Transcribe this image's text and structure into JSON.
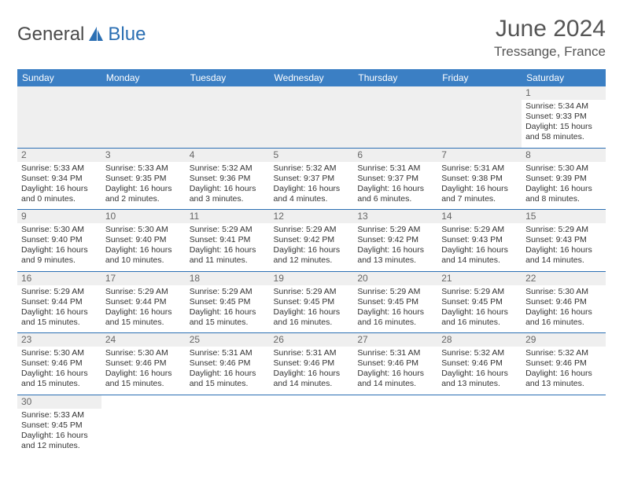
{
  "brand": {
    "part1": "General",
    "part2": "Blue"
  },
  "title": "June 2024",
  "location": "Tressange, France",
  "colors": {
    "header_bg": "#3b7fc4",
    "header_text": "#ffffff",
    "row_divider": "#2b6fb3",
    "daynum_bg": "#efefef",
    "logo_blue": "#2b6fb3",
    "logo_gray": "#4a4a4a"
  },
  "weekdays": [
    "Sunday",
    "Monday",
    "Tuesday",
    "Wednesday",
    "Thursday",
    "Friday",
    "Saturday"
  ],
  "weeks": [
    [
      null,
      null,
      null,
      null,
      null,
      null,
      {
        "d": "1",
        "sr": "Sunrise: 5:34 AM",
        "ss": "Sunset: 9:33 PM",
        "dl1": "Daylight: 15 hours",
        "dl2": "and 58 minutes."
      }
    ],
    [
      {
        "d": "2",
        "sr": "Sunrise: 5:33 AM",
        "ss": "Sunset: 9:34 PM",
        "dl1": "Daylight: 16 hours",
        "dl2": "and 0 minutes."
      },
      {
        "d": "3",
        "sr": "Sunrise: 5:33 AM",
        "ss": "Sunset: 9:35 PM",
        "dl1": "Daylight: 16 hours",
        "dl2": "and 2 minutes."
      },
      {
        "d": "4",
        "sr": "Sunrise: 5:32 AM",
        "ss": "Sunset: 9:36 PM",
        "dl1": "Daylight: 16 hours",
        "dl2": "and 3 minutes."
      },
      {
        "d": "5",
        "sr": "Sunrise: 5:32 AM",
        "ss": "Sunset: 9:37 PM",
        "dl1": "Daylight: 16 hours",
        "dl2": "and 4 minutes."
      },
      {
        "d": "6",
        "sr": "Sunrise: 5:31 AM",
        "ss": "Sunset: 9:37 PM",
        "dl1": "Daylight: 16 hours",
        "dl2": "and 6 minutes."
      },
      {
        "d": "7",
        "sr": "Sunrise: 5:31 AM",
        "ss": "Sunset: 9:38 PM",
        "dl1": "Daylight: 16 hours",
        "dl2": "and 7 minutes."
      },
      {
        "d": "8",
        "sr": "Sunrise: 5:30 AM",
        "ss": "Sunset: 9:39 PM",
        "dl1": "Daylight: 16 hours",
        "dl2": "and 8 minutes."
      }
    ],
    [
      {
        "d": "9",
        "sr": "Sunrise: 5:30 AM",
        "ss": "Sunset: 9:40 PM",
        "dl1": "Daylight: 16 hours",
        "dl2": "and 9 minutes."
      },
      {
        "d": "10",
        "sr": "Sunrise: 5:30 AM",
        "ss": "Sunset: 9:40 PM",
        "dl1": "Daylight: 16 hours",
        "dl2": "and 10 minutes."
      },
      {
        "d": "11",
        "sr": "Sunrise: 5:29 AM",
        "ss": "Sunset: 9:41 PM",
        "dl1": "Daylight: 16 hours",
        "dl2": "and 11 minutes."
      },
      {
        "d": "12",
        "sr": "Sunrise: 5:29 AM",
        "ss": "Sunset: 9:42 PM",
        "dl1": "Daylight: 16 hours",
        "dl2": "and 12 minutes."
      },
      {
        "d": "13",
        "sr": "Sunrise: 5:29 AM",
        "ss": "Sunset: 9:42 PM",
        "dl1": "Daylight: 16 hours",
        "dl2": "and 13 minutes."
      },
      {
        "d": "14",
        "sr": "Sunrise: 5:29 AM",
        "ss": "Sunset: 9:43 PM",
        "dl1": "Daylight: 16 hours",
        "dl2": "and 14 minutes."
      },
      {
        "d": "15",
        "sr": "Sunrise: 5:29 AM",
        "ss": "Sunset: 9:43 PM",
        "dl1": "Daylight: 16 hours",
        "dl2": "and 14 minutes."
      }
    ],
    [
      {
        "d": "16",
        "sr": "Sunrise: 5:29 AM",
        "ss": "Sunset: 9:44 PM",
        "dl1": "Daylight: 16 hours",
        "dl2": "and 15 minutes."
      },
      {
        "d": "17",
        "sr": "Sunrise: 5:29 AM",
        "ss": "Sunset: 9:44 PM",
        "dl1": "Daylight: 16 hours",
        "dl2": "and 15 minutes."
      },
      {
        "d": "18",
        "sr": "Sunrise: 5:29 AM",
        "ss": "Sunset: 9:45 PM",
        "dl1": "Daylight: 16 hours",
        "dl2": "and 15 minutes."
      },
      {
        "d": "19",
        "sr": "Sunrise: 5:29 AM",
        "ss": "Sunset: 9:45 PM",
        "dl1": "Daylight: 16 hours",
        "dl2": "and 16 minutes."
      },
      {
        "d": "20",
        "sr": "Sunrise: 5:29 AM",
        "ss": "Sunset: 9:45 PM",
        "dl1": "Daylight: 16 hours",
        "dl2": "and 16 minutes."
      },
      {
        "d": "21",
        "sr": "Sunrise: 5:29 AM",
        "ss": "Sunset: 9:45 PM",
        "dl1": "Daylight: 16 hours",
        "dl2": "and 16 minutes."
      },
      {
        "d": "22",
        "sr": "Sunrise: 5:30 AM",
        "ss": "Sunset: 9:46 PM",
        "dl1": "Daylight: 16 hours",
        "dl2": "and 16 minutes."
      }
    ],
    [
      {
        "d": "23",
        "sr": "Sunrise: 5:30 AM",
        "ss": "Sunset: 9:46 PM",
        "dl1": "Daylight: 16 hours",
        "dl2": "and 15 minutes."
      },
      {
        "d": "24",
        "sr": "Sunrise: 5:30 AM",
        "ss": "Sunset: 9:46 PM",
        "dl1": "Daylight: 16 hours",
        "dl2": "and 15 minutes."
      },
      {
        "d": "25",
        "sr": "Sunrise: 5:31 AM",
        "ss": "Sunset: 9:46 PM",
        "dl1": "Daylight: 16 hours",
        "dl2": "and 15 minutes."
      },
      {
        "d": "26",
        "sr": "Sunrise: 5:31 AM",
        "ss": "Sunset: 9:46 PM",
        "dl1": "Daylight: 16 hours",
        "dl2": "and 14 minutes."
      },
      {
        "d": "27",
        "sr": "Sunrise: 5:31 AM",
        "ss": "Sunset: 9:46 PM",
        "dl1": "Daylight: 16 hours",
        "dl2": "and 14 minutes."
      },
      {
        "d": "28",
        "sr": "Sunrise: 5:32 AM",
        "ss": "Sunset: 9:46 PM",
        "dl1": "Daylight: 16 hours",
        "dl2": "and 13 minutes."
      },
      {
        "d": "29",
        "sr": "Sunrise: 5:32 AM",
        "ss": "Sunset: 9:46 PM",
        "dl1": "Daylight: 16 hours",
        "dl2": "and 13 minutes."
      }
    ],
    [
      {
        "d": "30",
        "sr": "Sunrise: 5:33 AM",
        "ss": "Sunset: 9:45 PM",
        "dl1": "Daylight: 16 hours",
        "dl2": "and 12 minutes."
      },
      null,
      null,
      null,
      null,
      null,
      null
    ]
  ]
}
